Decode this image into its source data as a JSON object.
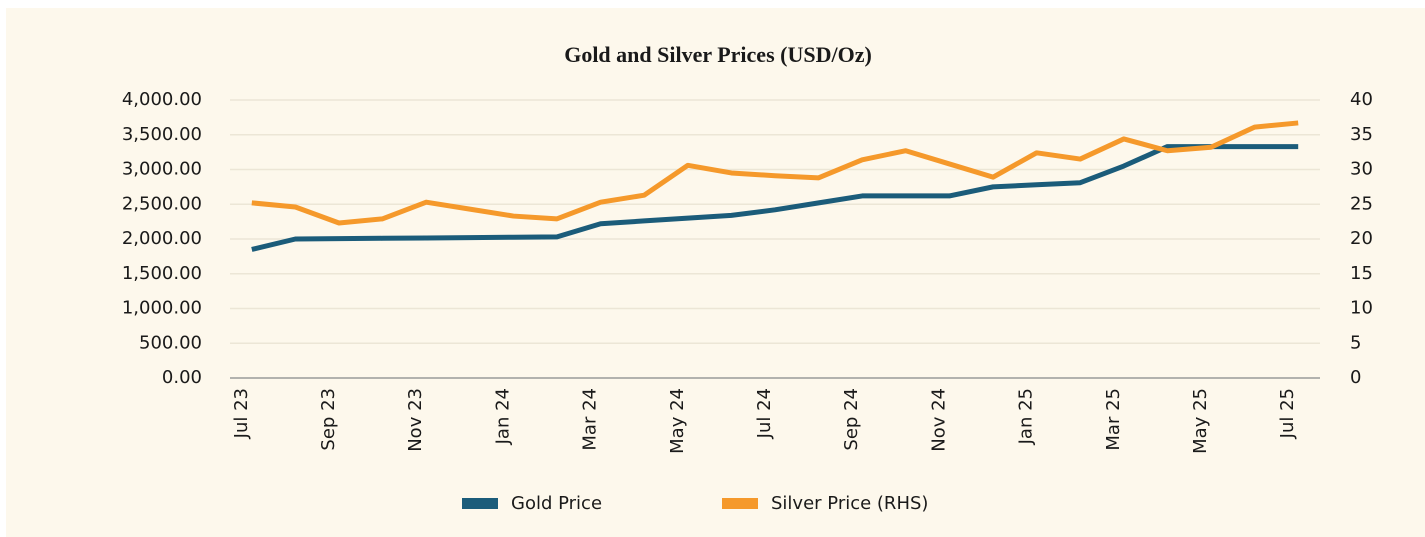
{
  "chart_data": {
    "type": "line",
    "title": "Gold and Silver Prices (USD/Oz)",
    "categories": [
      "Jul 23",
      null,
      "Sep 23",
      null,
      "Nov 23",
      null,
      "Jan 24",
      null,
      "Mar 24",
      null,
      "May 24",
      null,
      "Jul 24",
      null,
      "Sep 24",
      null,
      "Nov 24",
      null,
      "Jan 25",
      null,
      "Mar 25",
      null,
      "May 25",
      null,
      "Jul 25"
    ],
    "series": [
      {
        "name": "Gold Price",
        "color": "#1b5c7a",
        "axis": "y",
        "values": [
          1850,
          2000,
          2005,
          2010,
          2015,
          2020,
          2025,
          2030,
          2220,
          2260,
          2300,
          2340,
          2420,
          2520,
          2620,
          2620,
          2620,
          2750,
          2780,
          2810,
          3050,
          3330,
          3330,
          3330,
          3330
        ]
      },
      {
        "name": "Silver Price (RHS)",
        "color": "#f5992b",
        "axis": "y2",
        "values": [
          25.2,
          24.6,
          22.3,
          22.9,
          25.3,
          24.3,
          23.3,
          22.9,
          25.3,
          26.3,
          30.6,
          29.5,
          29.1,
          28.8,
          31.4,
          32.7,
          30.8,
          28.9,
          32.4,
          31.5,
          34.4,
          32.7,
          33.2,
          36.1,
          36.7
        ]
      }
    ],
    "ylim": [
      0,
      4000
    ],
    "yticks": [
      {
        "value": 0,
        "label": "0.00"
      },
      {
        "value": 500,
        "label": "500.00"
      },
      {
        "value": 1000,
        "label": "1,000.00"
      },
      {
        "value": 1500,
        "label": "1,500.00"
      },
      {
        "value": 2000,
        "label": "2,000.00"
      },
      {
        "value": 2500,
        "label": "2,500.00"
      },
      {
        "value": 3000,
        "label": "3,000.00"
      },
      {
        "value": 3500,
        "label": "3,500.00"
      },
      {
        "value": 4000,
        "label": "4,000.00"
      }
    ],
    "y2lim": [
      0,
      40
    ],
    "y2ticks": [
      0,
      5,
      10,
      15,
      20,
      25,
      30,
      35,
      40
    ],
    "grid": true,
    "legend": "bottom"
  }
}
